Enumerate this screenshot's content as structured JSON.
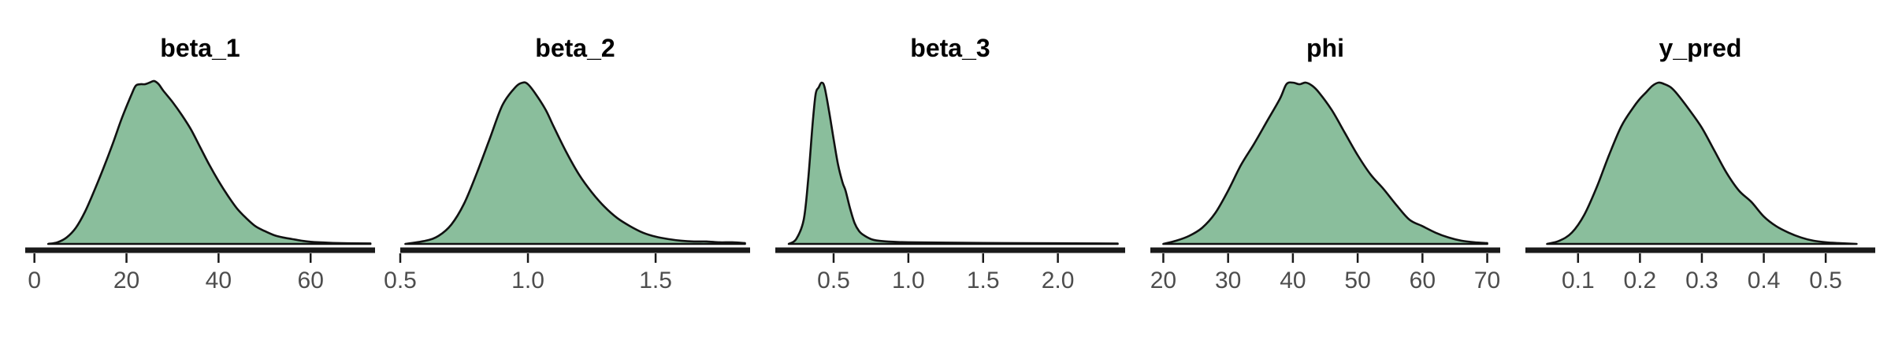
{
  "chart_data": [
    {
      "type": "area",
      "title": "beta_1",
      "xlim": [
        -2,
        74
      ],
      "ticks": [
        0,
        20,
        40,
        60
      ],
      "tick_labels": [
        "0",
        "20",
        "40",
        "60"
      ],
      "x": [
        3,
        5,
        7,
        9,
        11,
        13,
        15,
        17,
        19,
        21,
        22,
        23,
        24,
        25,
        26,
        27,
        28,
        30,
        32,
        34,
        36,
        38,
        40,
        42,
        44,
        46,
        48,
        50,
        52,
        54,
        56,
        58,
        60,
        64,
        68,
        73
      ],
      "density": [
        0.0,
        0.01,
        0.04,
        0.1,
        0.2,
        0.33,
        0.47,
        0.62,
        0.78,
        0.92,
        0.98,
        0.99,
        0.99,
        1.0,
        1.01,
        0.99,
        0.95,
        0.88,
        0.8,
        0.71,
        0.6,
        0.49,
        0.39,
        0.3,
        0.22,
        0.16,
        0.11,
        0.08,
        0.055,
        0.04,
        0.03,
        0.02,
        0.013,
        0.007,
        0.004,
        0.003
      ]
    },
    {
      "type": "area",
      "title": "beta_2",
      "xlim": [
        0.5,
        1.87
      ],
      "ticks": [
        0.5,
        1.0,
        1.5
      ],
      "tick_labels": [
        "0.5",
        "1.0",
        "1.5"
      ],
      "x": [
        0.52,
        0.6,
        0.65,
        0.7,
        0.75,
        0.8,
        0.85,
        0.9,
        0.95,
        0.98,
        1.0,
        1.03,
        1.07,
        1.1,
        1.15,
        1.2,
        1.25,
        1.3,
        1.35,
        1.4,
        1.45,
        1.5,
        1.55,
        1.6,
        1.65,
        1.7,
        1.75,
        1.8,
        1.85
      ],
      "density": [
        0.0,
        0.02,
        0.05,
        0.12,
        0.25,
        0.44,
        0.65,
        0.86,
        0.97,
        1.0,
        0.99,
        0.93,
        0.83,
        0.73,
        0.57,
        0.43,
        0.32,
        0.23,
        0.16,
        0.11,
        0.07,
        0.045,
        0.03,
        0.02,
        0.015,
        0.015,
        0.01,
        0.01,
        0.005
      ]
    },
    {
      "type": "area",
      "title": "beta_3",
      "xlim": [
        0.11,
        2.45
      ],
      "ticks": [
        0.5,
        1.0,
        1.5,
        2.0
      ],
      "tick_labels": [
        "0.5",
        "1.0",
        "1.5",
        "2.0"
      ],
      "x": [
        0.2,
        0.25,
        0.3,
        0.33,
        0.36,
        0.38,
        0.4,
        0.42,
        0.44,
        0.47,
        0.5,
        0.53,
        0.56,
        0.58,
        0.61,
        0.64,
        0.67,
        0.7,
        0.75,
        0.8,
        0.9,
        1.0,
        1.2,
        1.5,
        2.0,
        2.4
      ],
      "density": [
        0.0,
        0.03,
        0.15,
        0.4,
        0.75,
        0.93,
        0.97,
        1.0,
        0.97,
        0.82,
        0.65,
        0.49,
        0.38,
        0.33,
        0.22,
        0.13,
        0.08,
        0.055,
        0.03,
        0.02,
        0.013,
        0.01,
        0.008,
        0.006,
        0.004,
        0.002
      ]
    },
    {
      "type": "area",
      "title": "phi",
      "xlim": [
        18,
        72
      ],
      "ticks": [
        20,
        30,
        40,
        50,
        60,
        70
      ],
      "tick_labels": [
        "20",
        "30",
        "40",
        "50",
        "60",
        "70"
      ],
      "x": [
        20,
        22,
        24,
        26,
        28,
        30,
        32,
        34,
        36,
        38,
        39,
        40,
        41,
        42,
        43,
        44,
        46,
        48,
        50,
        52,
        54,
        56,
        58,
        60,
        62,
        64,
        66,
        68,
        70
      ],
      "density": [
        0.0,
        0.02,
        0.05,
        0.1,
        0.19,
        0.33,
        0.49,
        0.62,
        0.76,
        0.9,
        0.99,
        1.0,
        0.99,
        1.0,
        0.98,
        0.94,
        0.83,
        0.69,
        0.55,
        0.43,
        0.34,
        0.24,
        0.15,
        0.11,
        0.07,
        0.04,
        0.02,
        0.01,
        0.005
      ]
    },
    {
      "type": "area",
      "title": "y_pred",
      "xlim": [
        0.015,
        0.58
      ],
      "ticks": [
        0.1,
        0.2,
        0.3,
        0.4,
        0.5
      ],
      "tick_labels": [
        "0.1",
        "0.2",
        "0.3",
        "0.4",
        "0.5"
      ],
      "x": [
        0.05,
        0.07,
        0.09,
        0.11,
        0.13,
        0.15,
        0.17,
        0.19,
        0.2,
        0.21,
        0.22,
        0.23,
        0.24,
        0.25,
        0.26,
        0.28,
        0.3,
        0.32,
        0.34,
        0.36,
        0.38,
        0.4,
        0.42,
        0.44,
        0.46,
        0.48,
        0.5,
        0.52,
        0.55
      ],
      "density": [
        0.0,
        0.02,
        0.07,
        0.18,
        0.35,
        0.55,
        0.73,
        0.85,
        0.9,
        0.94,
        0.98,
        1.0,
        0.99,
        0.97,
        0.93,
        0.83,
        0.72,
        0.58,
        0.44,
        0.33,
        0.26,
        0.17,
        0.11,
        0.07,
        0.04,
        0.02,
        0.01,
        0.005,
        0.0
      ]
    }
  ],
  "colors": {
    "fill": "#8abe9c",
    "stroke": "#111111",
    "axis": "#1a1a1a",
    "tick_text": "#4d4d4d",
    "title_text": "#000000"
  }
}
